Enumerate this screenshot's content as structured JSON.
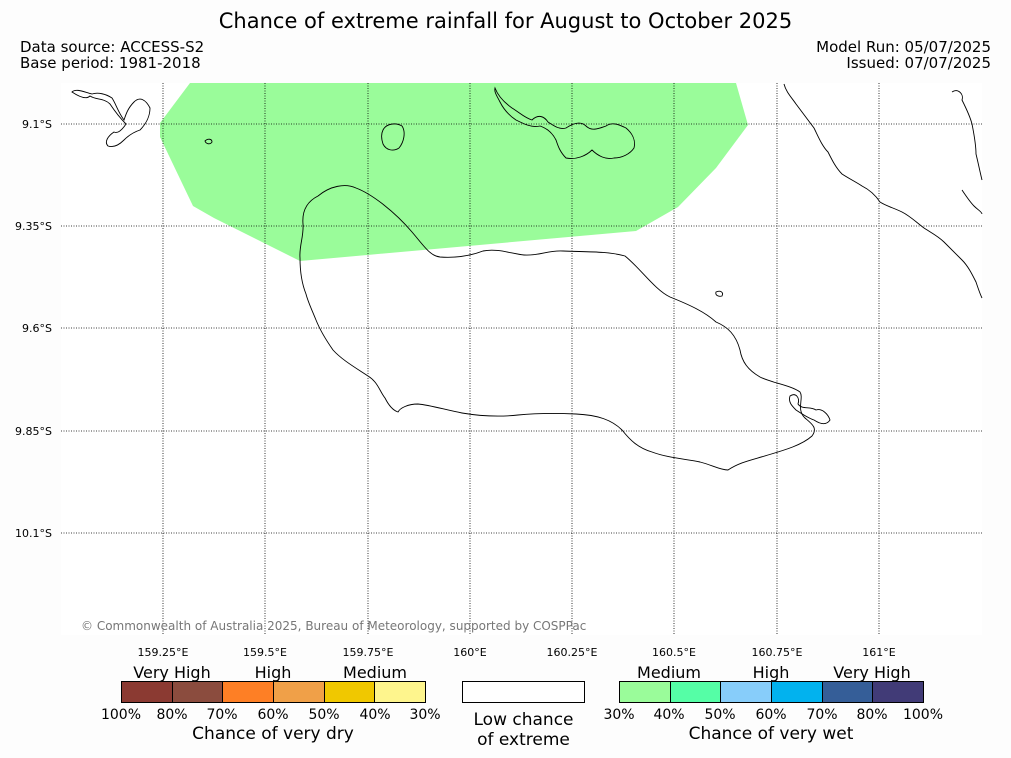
{
  "title": "Chance of extreme rainfall for August to October 2025",
  "meta": {
    "data_source": "Data source: ACCESS-S2",
    "base_period": "Base period: 1981-2018",
    "model_run": "Model Run: 05/07/2025",
    "issued": "Issued: 07/07/2025"
  },
  "credit": "© Commonwealth of Australia 2025, Bureau of Meteorology, supported by COSPPac",
  "map": {
    "x_ticks": [
      "159.25°E",
      "159.5°E",
      "159.75°E",
      "160°E",
      "160.25°E",
      "160.5°E",
      "160.75°E",
      "161°E"
    ],
    "y_ticks": [
      "9.1°S",
      "9.35°S",
      "9.6°S",
      "9.85°S",
      "10.1°S"
    ],
    "highlight": {
      "category": "Medium chance of very wet",
      "range": "30%–40%",
      "color": "#9afc9a"
    }
  },
  "legend": {
    "dry": {
      "categories": [
        "Very High",
        "High",
        "Medium"
      ],
      "ticks": [
        "100%",
        "80%",
        "70%",
        "60%",
        "50%",
        "40%",
        "30%"
      ],
      "colors": [
        "#8b3a32",
        "#8b4c3e",
        "#fe7f25",
        "#f0a048",
        "#f0c800",
        "#fef58d"
      ],
      "title": "Chance of very dry"
    },
    "low": {
      "line1": "Low chance",
      "line2": "of extreme"
    },
    "wet": {
      "categories": [
        "Medium",
        "High",
        "Very High"
      ],
      "ticks": [
        "30%",
        "40%",
        "50%",
        "60%",
        "70%",
        "80%",
        "100%"
      ],
      "colors": [
        "#9afc9a",
        "#55fea6",
        "#87cdfa",
        "#02b2ee",
        "#355e98",
        "#413b77"
      ],
      "title": "Chance of very wet"
    }
  }
}
